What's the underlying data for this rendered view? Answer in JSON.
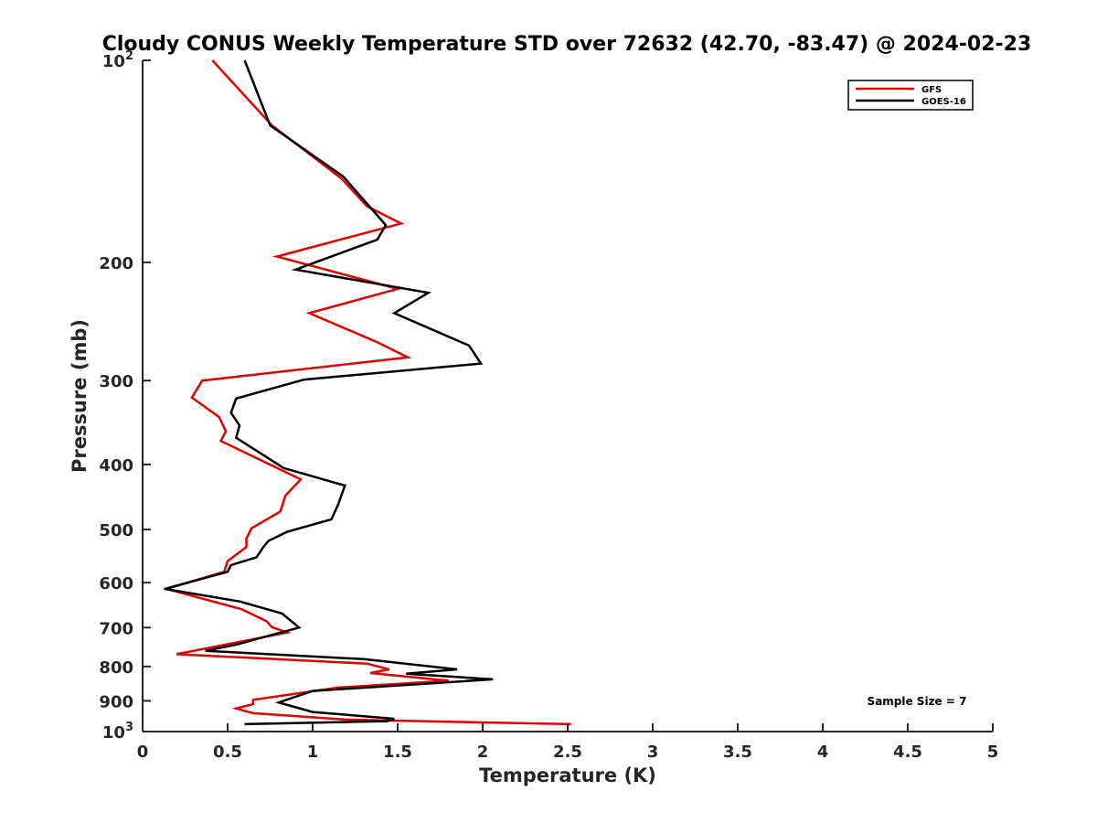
{
  "chart_data": {
    "type": "line",
    "title": "Cloudy CONUS Weekly Temperature STD over 72632 (42.70, -83.47) @ 2024-02-23",
    "xlabel": "Temperature (K)",
    "ylabel": "Pressure (mb)",
    "xlim": [
      0,
      5
    ],
    "ylim": [
      100,
      1000
    ],
    "y_scale": "log",
    "y_reversed": true,
    "x_ticks": [
      0,
      0.5,
      1,
      1.5,
      2,
      2.5,
      3,
      3.5,
      4,
      4.5,
      5
    ],
    "x_tick_labels": [
      "0",
      "0.5",
      "1",
      "1.5",
      "2",
      "2.5",
      "3",
      "3.5",
      "4",
      "4.5",
      "5"
    ],
    "y_ticks": [
      100,
      200,
      300,
      400,
      500,
      600,
      700,
      800,
      900,
      1000
    ],
    "y_tick_labels": [
      {
        "base": "10",
        "exp": "2"
      },
      {
        "base": "200",
        "exp": ""
      },
      {
        "base": "300",
        "exp": ""
      },
      {
        "base": "400",
        "exp": ""
      },
      {
        "base": "500",
        "exp": ""
      },
      {
        "base": "600",
        "exp": ""
      },
      {
        "base": "700",
        "exp": ""
      },
      {
        "base": "800",
        "exp": ""
      },
      {
        "base": "900",
        "exp": ""
      },
      {
        "base": "10",
        "exp": "3"
      }
    ],
    "grid": false,
    "legend_position": "top-right",
    "annotation": "Sample Size = 7",
    "series": [
      {
        "name": "GFS",
        "color": "#e00000",
        "points": [
          [
            0.41,
            100
          ],
          [
            0.76,
            125
          ],
          [
            1.17,
            150
          ],
          [
            1.32,
            165
          ],
          [
            1.52,
            175
          ],
          [
            0.79,
            196
          ],
          [
            1.5,
            219
          ],
          [
            0.98,
            238
          ],
          [
            1.38,
            263
          ],
          [
            1.56,
            277
          ],
          [
            0.35,
            300
          ],
          [
            0.29,
            318
          ],
          [
            0.45,
            340
          ],
          [
            0.49,
            357
          ],
          [
            0.46,
            369
          ],
          [
            0.93,
            421
          ],
          [
            0.84,
            445
          ],
          [
            0.81,
            470
          ],
          [
            0.64,
            498
          ],
          [
            0.61,
            516
          ],
          [
            0.61,
            531
          ],
          [
            0.5,
            557
          ],
          [
            0.48,
            578
          ],
          [
            0.14,
            613
          ],
          [
            0.58,
            657
          ],
          [
            0.73,
            685
          ],
          [
            0.76,
            699
          ],
          [
            0.85,
            712
          ],
          [
            0.2,
            767
          ],
          [
            1.32,
            792
          ],
          [
            1.45,
            808
          ],
          [
            1.34,
            818
          ],
          [
            1.8,
            840
          ],
          [
            1.15,
            860
          ],
          [
            0.65,
            897
          ],
          [
            0.65,
            910
          ],
          [
            0.55,
            924
          ],
          [
            0.65,
            939
          ],
          [
            1.2,
            960
          ],
          [
            2.52,
            975
          ]
        ]
      },
      {
        "name": "GOES-16",
        "color": "#000000",
        "points": [
          [
            0.6,
            100
          ],
          [
            0.75,
            125
          ],
          [
            1.18,
            149
          ],
          [
            1.43,
            176
          ],
          [
            1.38,
            185
          ],
          [
            0.9,
            205
          ],
          [
            1.68,
            222
          ],
          [
            1.48,
            238
          ],
          [
            1.92,
            266
          ],
          [
            1.99,
            283
          ],
          [
            0.95,
            299
          ],
          [
            0.55,
            319
          ],
          [
            0.52,
            335
          ],
          [
            0.57,
            350
          ],
          [
            0.55,
            365
          ],
          [
            0.83,
            405
          ],
          [
            1.19,
            430
          ],
          [
            1.15,
            459
          ],
          [
            1.11,
            483
          ],
          [
            0.85,
            504
          ],
          [
            0.74,
            520
          ],
          [
            0.71,
            531
          ],
          [
            0.67,
            550
          ],
          [
            0.52,
            565
          ],
          [
            0.5,
            578
          ],
          [
            0.13,
            613
          ],
          [
            0.57,
            640
          ],
          [
            0.82,
            667
          ],
          [
            0.92,
            700
          ],
          [
            0.55,
            742
          ],
          [
            0.37,
            758
          ],
          [
            1.3,
            780
          ],
          [
            1.85,
            808
          ],
          [
            1.55,
            820
          ],
          [
            2.06,
            836
          ],
          [
            1.0,
            870
          ],
          [
            0.8,
            905
          ],
          [
            1.0,
            935
          ],
          [
            1.48,
            957
          ],
          [
            1.44,
            965
          ],
          [
            0.6,
            975
          ]
        ]
      }
    ]
  }
}
